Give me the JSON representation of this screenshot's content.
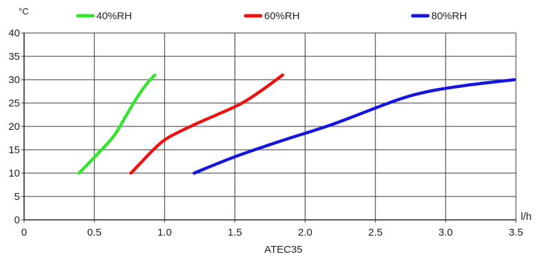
{
  "chart_data": {
    "type": "line",
    "title": "",
    "xlabel": "ATEC35",
    "x_unit": "l/h",
    "y_unit": "°C",
    "xlim": [
      0,
      3.5
    ],
    "ylim": [
      0,
      40
    ],
    "x_ticks": [
      "0",
      "0.5",
      "1.0",
      "1.5",
      "2.0",
      "2.5",
      "3.0",
      "3.5"
    ],
    "y_ticks": [
      "0",
      "5",
      "10",
      "15",
      "20",
      "25",
      "30",
      "35",
      "40"
    ],
    "grid": true,
    "legend_position": "top",
    "series": [
      {
        "name": "40%RH",
        "color": "#33e52e",
        "x": [
          0.39,
          0.52,
          0.64,
          0.72,
          0.8,
          0.87,
          0.93
        ],
        "y": [
          10,
          14,
          18,
          22,
          26,
          29,
          31
        ]
      },
      {
        "name": "60%RH",
        "color": "#ee1111",
        "x": [
          0.76,
          0.84,
          0.92,
          1.02,
          1.22,
          1.52,
          1.68,
          1.84
        ],
        "y": [
          10,
          12.5,
          15,
          17.5,
          20.5,
          24.5,
          27.5,
          31
        ]
      },
      {
        "name": "80%RH",
        "color": "#1515dd",
        "x": [
          1.21,
          1.5,
          1.84,
          2.2,
          2.64,
          2.88,
          3.15,
          3.49
        ],
        "y": [
          10,
          13.5,
          17,
          20.5,
          25.5,
          27.5,
          28.8,
          30
        ]
      }
    ]
  }
}
